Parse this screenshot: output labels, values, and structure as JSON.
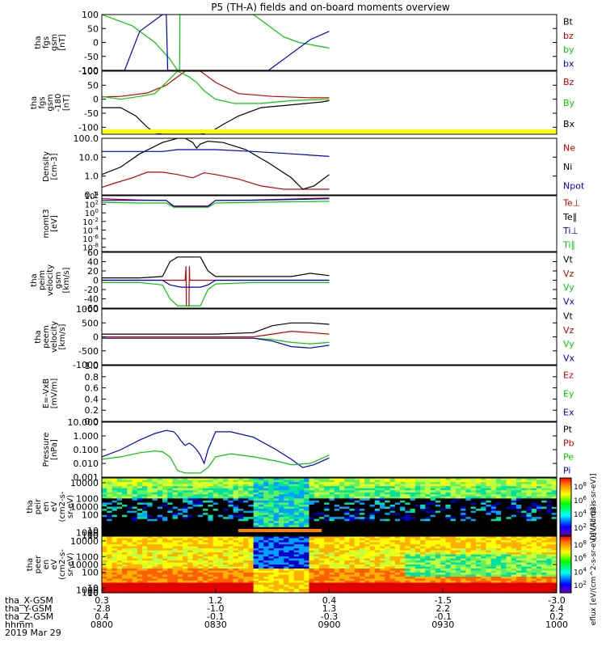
{
  "title": "P5 (TH-A) fields and on-board moments overview",
  "date_label": "2019 Mar 29",
  "colors": {
    "black": "#000000",
    "red": "#cc0000",
    "green": "#00cc00",
    "blue": "#0000cc",
    "yellow": "#ffff00",
    "red_bright": "#ff0000"
  },
  "chart_data": [
    {
      "type": "line",
      "panel": "fgs",
      "ylabel": [
        "tha",
        "fgs",
        "gsm",
        "[nT]"
      ],
      "ylim": [
        -100,
        100
      ],
      "yticks": [
        "100",
        "50",
        "0",
        "-50",
        "-100"
      ],
      "legend": [
        {
          "label": "Bt",
          "color": "#000000"
        },
        {
          "label": "bz",
          "color": "#cc0000"
        },
        {
          "label": "by",
          "color": "#00cc00"
        },
        {
          "label": "bx",
          "color": "#0000cc"
        }
      ],
      "series": [
        {
          "name": "by",
          "color": "#00cc00",
          "x": [
            0,
            8,
            14,
            18,
            20,
            20.5,
            20.6,
            30,
            40,
            48,
            52,
            56,
            60
          ],
          "y": [
            100,
            60,
            0,
            -60,
            -100,
            -100,
            100,
            100,
            100,
            20,
            0,
            -10,
            -20
          ]
        },
        {
          "name": "bx",
          "color": "#0000cc",
          "x": [
            0,
            5,
            6,
            10,
            16,
            17,
            17.4,
            17.5,
            30,
            44,
            45,
            50,
            55,
            60
          ],
          "y": [
            -100,
            -100,
            -100,
            40,
            100,
            100,
            -100,
            -100,
            -100,
            -100,
            -90,
            -40,
            10,
            40
          ]
        }
      ]
    },
    {
      "type": "line",
      "panel": "fgs_clipped",
      "ylabel": [
        "tha",
        "fgs",
        "gsm",
        "-180",
        "[nT]"
      ],
      "ylim": [
        -125,
        100
      ],
      "yticks": [
        "100",
        "50",
        "0",
        "-50",
        "-100"
      ],
      "legend": [
        {
          "label": "Bz",
          "color": "#cc0000"
        },
        {
          "label": "By",
          "color": "#00cc00"
        },
        {
          "label": "Bx",
          "color": "#000000"
        }
      ],
      "series": [
        {
          "name": "Bz",
          "color": "#cc0000",
          "x": [
            0,
            5,
            12,
            17,
            19,
            22,
            24,
            26,
            30,
            36,
            45,
            55,
            60
          ],
          "y": [
            8,
            10,
            22,
            50,
            70,
            100,
            100,
            100,
            60,
            20,
            10,
            5,
            5
          ]
        },
        {
          "name": "By",
          "color": "#00cc00",
          "x": [
            0,
            5,
            10,
            14,
            17,
            20,
            23,
            25,
            27,
            30,
            35,
            42,
            50,
            60
          ],
          "y": [
            10,
            0,
            10,
            20,
            60,
            100,
            80,
            60,
            30,
            0,
            -15,
            -15,
            -5,
            0
          ]
        },
        {
          "name": "Bx",
          "color": "#000000",
          "x": [
            0,
            5,
            9,
            12,
            14,
            16,
            18,
            20,
            22,
            24,
            26,
            29,
            32,
            36,
            42,
            50,
            58,
            60
          ],
          "y": [
            -30,
            -30,
            -60,
            -100,
            -120,
            -125,
            -125,
            -125,
            -125,
            -125,
            -125,
            -115,
            -90,
            -60,
            -30,
            -20,
            -10,
            -5
          ]
        }
      ]
    },
    {
      "type": "line",
      "panel": "density",
      "log": true,
      "ylabel": [
        "Density",
        "[cm-3]"
      ],
      "ylim": [
        0.1,
        100
      ],
      "yticks": [
        "100.0",
        "10.0",
        "1.0",
        "0.1"
      ],
      "legend": [
        {
          "label": "Ne",
          "color": "#cc0000"
        },
        {
          "label": "Ni",
          "color": "#000000"
        },
        {
          "label": "Npot",
          "color": "#0000cc"
        }
      ],
      "series": [
        {
          "name": "Ne",
          "color": "#cc0000",
          "x": [
            0,
            3,
            8,
            12,
            16,
            20,
            24,
            27,
            30,
            36,
            42,
            48,
            54,
            60
          ],
          "y": [
            0.25,
            0.4,
            0.8,
            1.6,
            1.6,
            1.2,
            0.8,
            1.5,
            1.2,
            0.7,
            0.3,
            0.2,
            0.2,
            0.2
          ]
        },
        {
          "name": "Ni",
          "color": "#000000",
          "x": [
            0,
            5,
            10,
            16,
            20,
            22,
            24,
            25,
            26,
            28,
            32,
            38,
            44,
            50,
            53,
            56,
            60
          ],
          "y": [
            1.2,
            3,
            15,
            60,
            100,
            100,
            60,
            30,
            50,
            70,
            60,
            25,
            5,
            0.8,
            0.2,
            0.3,
            1.2
          ]
        },
        {
          "name": "Npot",
          "color": "#0000cc",
          "x": [
            0,
            8,
            16,
            20,
            30,
            40,
            50,
            60
          ],
          "y": [
            20,
            20,
            20,
            25,
            25,
            20,
            15,
            11
          ]
        }
      ]
    },
    {
      "type": "line",
      "panel": "mom",
      "log": true,
      "ylabel": [
        "momt3",
        "[eV]"
      ],
      "ylim": [
        1e-09,
        10000.0
      ],
      "yticks_rich": [
        {
          "v": 10000.0,
          "base": "10",
          "exp": "4"
        },
        {
          "v": 100.0,
          "base": "10",
          "exp": "2"
        },
        {
          "v": 1.0,
          "base": "10",
          "exp": "0"
        },
        {
          "v": 0.01,
          "base": "10",
          "exp": "-2"
        },
        {
          "v": 0.0001,
          "base": "10",
          "exp": "-4"
        },
        {
          "v": 1e-06,
          "base": "10",
          "exp": "-6"
        },
        {
          "v": 1e-08,
          "base": "10",
          "exp": "-8"
        }
      ],
      "legend": [
        {
          "label": "Te⊥",
          "color": "#cc0000"
        },
        {
          "label": "Te∥",
          "color": "#000000"
        },
        {
          "label": "Ti⊥",
          "color": "#0000cc"
        },
        {
          "label": "Ti∥",
          "color": "#00cc00"
        }
      ],
      "series": [
        {
          "name": "Te⊥",
          "color": "#cc0000",
          "x": [
            0,
            10,
            17,
            19,
            28,
            30,
            40,
            60
          ],
          "y": [
            2000,
            1000,
            800,
            40,
            40,
            800,
            1000,
            3000
          ]
        },
        {
          "name": "Ti⊥",
          "color": "#0000cc",
          "x": [
            0,
            10,
            17,
            19,
            28,
            30,
            40,
            60
          ],
          "y": [
            800,
            900,
            800,
            30,
            30,
            800,
            900,
            2000
          ]
        },
        {
          "name": "Ti∥",
          "color": "#00cc00",
          "x": [
            0,
            10,
            17,
            19,
            28,
            30,
            40,
            60
          ],
          "y": [
            300,
            200,
            200,
            20,
            20,
            200,
            300,
            500
          ]
        }
      ]
    },
    {
      "type": "line",
      "panel": "peim",
      "ylabel": [
        "tha",
        "peim",
        "velocity",
        "gsm",
        "[km/s]"
      ],
      "ylim": [
        -60,
        60
      ],
      "yticks": [
        "60",
        "40",
        "20",
        "0",
        "-20",
        "-40",
        "-60"
      ],
      "legend": [
        {
          "label": "Vt",
          "color": "#000000"
        },
        {
          "label": "Vz",
          "color": "#cc0000"
        },
        {
          "label": "Vy",
          "color": "#00cc00"
        },
        {
          "label": "Vx",
          "color": "#0000cc"
        }
      ],
      "series": [
        {
          "name": "Vt",
          "color": "#000000",
          "x": [
            0,
            10,
            16,
            18,
            20,
            26,
            28,
            30,
            40,
            50,
            55,
            60
          ],
          "y": [
            5,
            5,
            8,
            40,
            50,
            50,
            20,
            8,
            8,
            8,
            15,
            10
          ]
        },
        {
          "name": "Vz",
          "color": "#cc0000",
          "x": [
            0,
            16,
            22,
            22.2,
            22.3,
            23,
            23.1,
            23.2,
            30,
            60
          ],
          "y": [
            0,
            0,
            0,
            30,
            -55,
            -55,
            30,
            0,
            0,
            0
          ]
        },
        {
          "name": "Vy",
          "color": "#00cc00",
          "x": [
            0,
            10,
            16,
            18,
            20,
            26,
            28,
            30,
            40,
            50,
            60
          ],
          "y": [
            -5,
            -5,
            -10,
            -40,
            -55,
            -55,
            -20,
            -8,
            -5,
            -5,
            -5
          ]
        },
        {
          "name": "Vx",
          "color": "#0000cc",
          "x": [
            0,
            16,
            18,
            21,
            26,
            28,
            30,
            60
          ],
          "y": [
            0,
            0,
            -10,
            -15,
            -15,
            -10,
            0,
            0
          ]
        }
      ]
    },
    {
      "type": "line",
      "panel": "peem",
      "ylabel": [
        "tha",
        "peem",
        "velocity",
        "[km/s]"
      ],
      "ylim": [
        -1000,
        1000
      ],
      "yticks": [
        "1000",
        "500",
        "0",
        "-500",
        "-1000"
      ],
      "legend": [
        {
          "label": "Vt",
          "color": "#000000"
        },
        {
          "label": "Vz",
          "color": "#cc0000"
        },
        {
          "label": "Vy",
          "color": "#00cc00"
        },
        {
          "label": "Vx",
          "color": "#0000cc"
        }
      ],
      "series": [
        {
          "name": "Vt",
          "color": "#000000",
          "x": [
            0,
            10,
            20,
            30,
            40,
            45,
            50,
            55,
            60
          ],
          "y": [
            100,
            100,
            100,
            100,
            150,
            400,
            500,
            500,
            450
          ]
        },
        {
          "name": "Vz",
          "color": "#cc0000",
          "x": [
            0,
            20,
            40,
            45,
            50,
            55,
            60
          ],
          "y": [
            0,
            0,
            0,
            100,
            200,
            150,
            100
          ]
        },
        {
          "name": "Vy",
          "color": "#00cc00",
          "x": [
            0,
            20,
            40,
            45,
            50,
            55,
            60
          ],
          "y": [
            -50,
            -50,
            -50,
            -100,
            -200,
            -250,
            -200
          ]
        },
        {
          "name": "Vx",
          "color": "#0000cc",
          "x": [
            0,
            20,
            40,
            45,
            50,
            55,
            60
          ],
          "y": [
            -50,
            -50,
            -50,
            -150,
            -350,
            -400,
            -300
          ]
        }
      ]
    },
    {
      "type": "line",
      "panel": "efield",
      "ylabel": [
        "E=-VxB",
        "[mV/m]"
      ],
      "ylim": [
        0,
        1
      ],
      "yticks": [
        "1.0",
        "0.8",
        "0.6",
        "0.4",
        "0.2",
        "0.0"
      ],
      "legend": [
        {
          "label": "Ez",
          "color": "#cc0000"
        },
        {
          "label": "Ey",
          "color": "#00cc00"
        },
        {
          "label": "Ex",
          "color": "#0000cc"
        }
      ],
      "series": []
    },
    {
      "type": "line",
      "panel": "pressure",
      "log": true,
      "ylabel": [
        "Pressure",
        "[nPa]"
      ],
      "ylim": [
        0.001,
        10
      ],
      "yticks": [
        "10.000",
        "1.000",
        "0.100",
        "0.010",
        "0.001"
      ],
      "legend": [
        {
          "label": "Pt",
          "color": "#000000"
        },
        {
          "label": "Pb",
          "color": "#cc0000"
        },
        {
          "label": "Pe",
          "color": "#00cc00"
        },
        {
          "label": "Pi",
          "color": "#0000cc"
        }
      ],
      "series": [
        {
          "name": "Pi",
          "color": "#0000cc",
          "x": [
            0,
            5,
            10,
            14,
            17,
            19,
            20,
            21,
            22,
            23,
            24,
            25,
            26,
            27,
            28,
            30,
            34,
            40,
            46,
            50,
            53,
            56,
            60
          ],
          "y": [
            0.03,
            0.1,
            0.5,
            1.5,
            2.5,
            2,
            1,
            0.4,
            0.2,
            0.3,
            0.2,
            0.1,
            0.04,
            0.01,
            0.1,
            2,
            2,
            0.8,
            0.1,
            0.02,
            0.005,
            0.008,
            0.025
          ]
        },
        {
          "name": "Pe",
          "color": "#00cc00",
          "x": [
            0,
            5,
            10,
            14,
            16,
            18,
            20,
            22,
            24,
            26,
            28,
            30,
            34,
            40,
            46,
            50,
            55,
            60
          ],
          "y": [
            0.02,
            0.03,
            0.06,
            0.08,
            0.07,
            0.03,
            0.003,
            0.002,
            0.002,
            0.002,
            0.005,
            0.03,
            0.05,
            0.03,
            0.015,
            0.008,
            0.01,
            0.04
          ]
        }
      ]
    },
    {
      "type": "heatmap",
      "panel": "peir",
      "ylabel": [
        "tha",
        "peir",
        "en",
        "eV",
        "(cm2-s-",
        "sr-eV)"
      ],
      "ylim": [
        5,
        20000
      ],
      "yticks": [
        "10000",
        "1000",
        "100",
        "10"
      ],
      "colorbar": {
        "ticks_exp": [
          "8",
          "6",
          "4",
          "2"
        ],
        "label": "[eV/(cm2-s-sr-eV)]"
      }
    },
    {
      "type": "heatmap",
      "panel": "peer",
      "ylabel": [
        "tha",
        "peer",
        "en",
        "eV",
        "(cm2-s-",
        "sr-eV)"
      ],
      "ylim": [
        5,
        20000
      ],
      "yticks": [
        "10000",
        "1000",
        "100",
        "10"
      ],
      "colorbar": {
        "ticks_exp": [
          "8",
          "6",
          "4",
          "2"
        ],
        "label": "eflux [eV/(cm^2-s-sr-eV)] (All Qs)"
      }
    }
  ],
  "x_axis": {
    "rows": [
      {
        "label": "tha_X-GSM",
        "values": [
          "0.3",
          "1.2",
          "0.4",
          "-1.5",
          "-3.0"
        ]
      },
      {
        "label": "tha_Y-GSM",
        "values": [
          "-2.8",
          "-1.0",
          "1.3",
          "2.2",
          "2.4"
        ]
      },
      {
        "label": "tha_Z-GSM",
        "values": [
          "0.4",
          "-0.1",
          "-0.3",
          "-0.1",
          "0.2"
        ]
      },
      {
        "label": "hhmm",
        "values": [
          "0800",
          "0830",
          "0900",
          "0930",
          "1000"
        ]
      }
    ],
    "tick_minutes": [
      0,
      30,
      60,
      90,
      120
    ]
  }
}
